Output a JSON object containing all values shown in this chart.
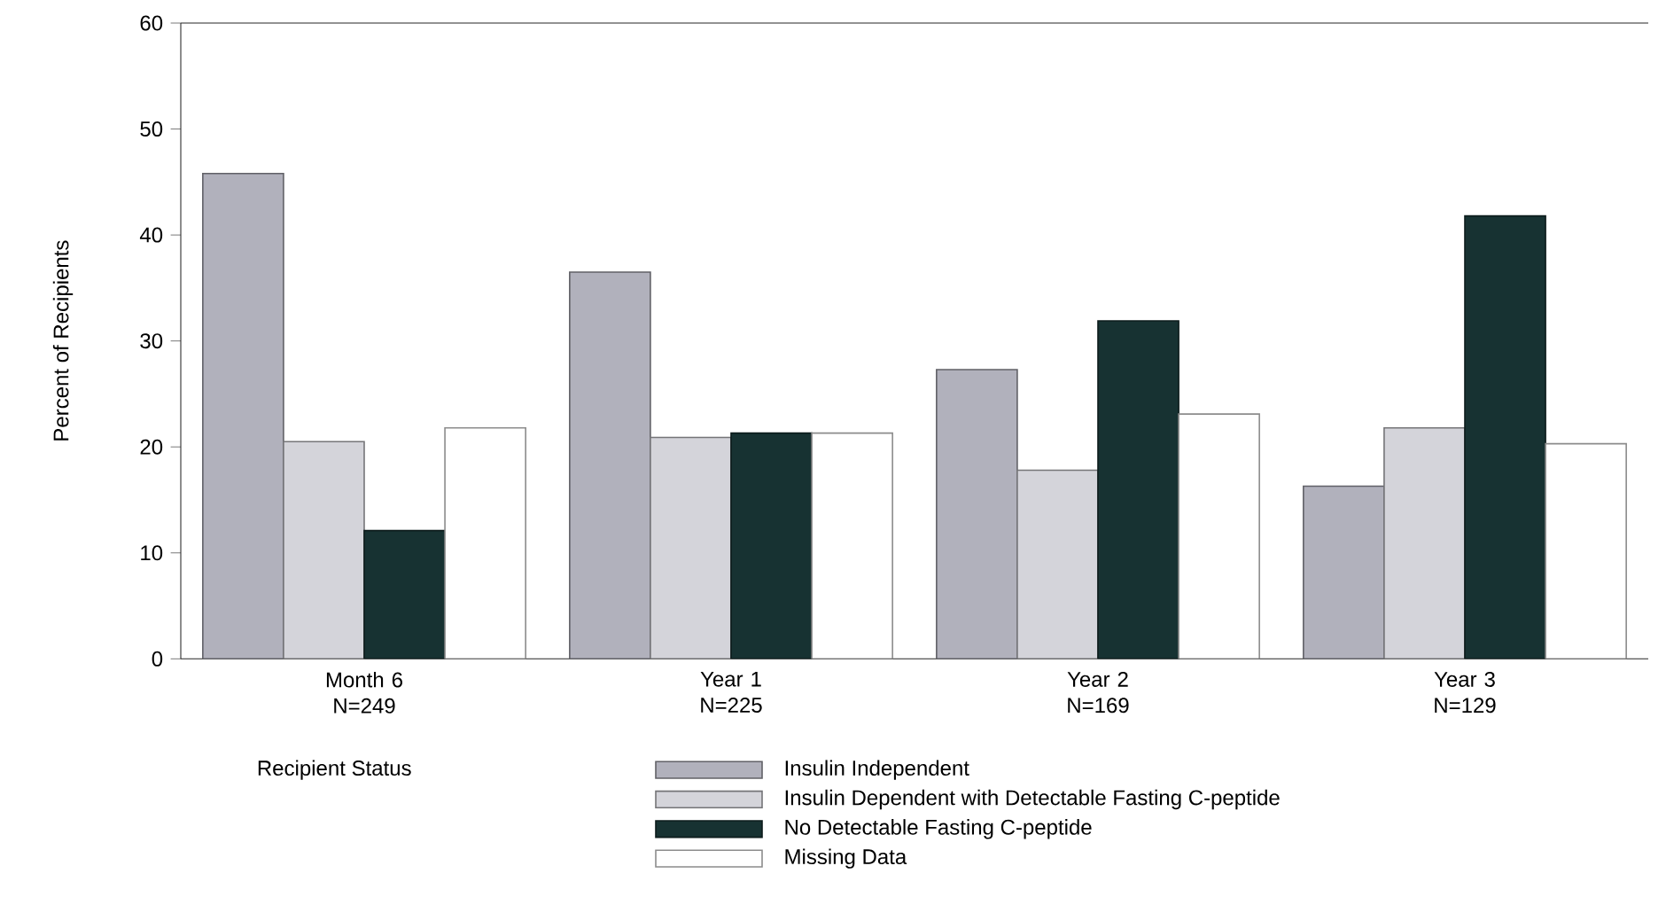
{
  "chart_data": {
    "type": "bar",
    "categories": [
      "Month 6 N=249",
      "Year 1 N=225",
      "Year 2 N=169",
      "Year 3 N=129"
    ],
    "ylabel": "Percent of Recipients",
    "legend_title": "Recipient Status",
    "ylim": [
      0,
      60
    ],
    "yticks": [
      0,
      10,
      20,
      30,
      40,
      50,
      60
    ],
    "legend": "bottom",
    "series": [
      {
        "name": "Insulin Independent",
        "color": "#b1b1bc",
        "values": [
          45.8,
          36.5,
          27.3,
          16.3
        ]
      },
      {
        "name": "Insulin Dependent with Detectable Fasting C-peptide",
        "color": "#d4d4da",
        "values": [
          20.5,
          20.9,
          17.8,
          21.8
        ]
      },
      {
        "name": "No Detectable Fasting C-peptide",
        "color": "#173232",
        "values": [
          12.1,
          21.3,
          31.9,
          41.8
        ]
      },
      {
        "name": "Missing Data",
        "color": "#ffffff",
        "values": [
          21.8,
          21.3,
          23.1,
          20.3
        ]
      }
    ]
  }
}
